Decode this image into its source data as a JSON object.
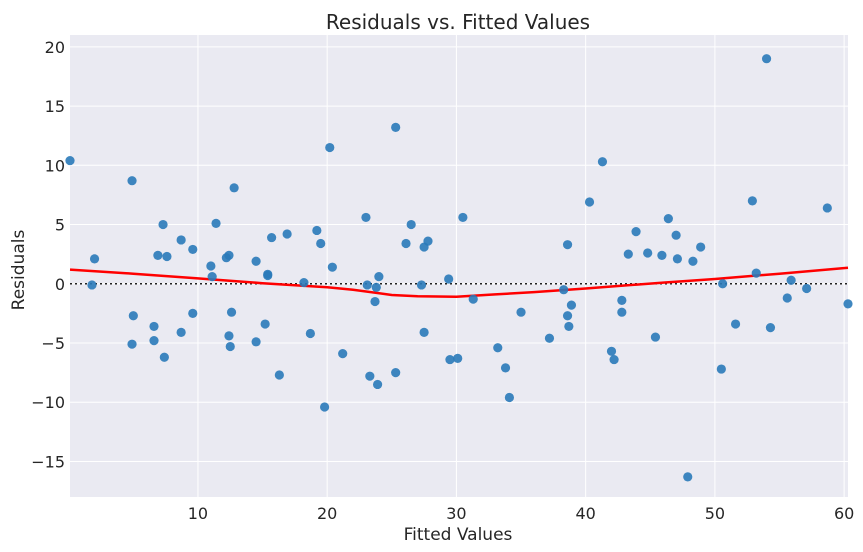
{
  "chart_data": {
    "type": "scatter",
    "title": "Residuals vs. Fitted Values",
    "xlabel": "Fitted Values",
    "ylabel": "Residuals",
    "xlim": [
      0.1,
      60.3
    ],
    "ylim": [
      -18,
      21
    ],
    "xticks": [
      10,
      20,
      30,
      40,
      50,
      60
    ],
    "yticks": [
      -15,
      -10,
      -5,
      0,
      5,
      10,
      15,
      20
    ],
    "grid": true,
    "reference_line": {
      "y": 0,
      "style": "dotted",
      "color": "#222222"
    },
    "colors": {
      "points": "#2a7ab9",
      "smooth": "#ff0000",
      "background": "#eaeaf2"
    },
    "points": [
      [
        0.1,
        10.4
      ],
      [
        1.8,
        -0.1
      ],
      [
        2.0,
        2.1
      ],
      [
        4.9,
        8.7
      ],
      [
        5.0,
        -2.7
      ],
      [
        4.9,
        -5.1
      ],
      [
        6.6,
        -3.6
      ],
      [
        6.6,
        -4.8
      ],
      [
        6.9,
        2.4
      ],
      [
        7.3,
        5.0
      ],
      [
        7.4,
        -6.2
      ],
      [
        7.6,
        2.3
      ],
      [
        8.7,
        3.7
      ],
      [
        8.7,
        -4.1
      ],
      [
        9.6,
        2.9
      ],
      [
        9.6,
        -2.5
      ],
      [
        11.0,
        1.5
      ],
      [
        11.1,
        0.6
      ],
      [
        11.4,
        5.1
      ],
      [
        12.2,
        2.2
      ],
      [
        12.4,
        2.4
      ],
      [
        12.4,
        -4.4
      ],
      [
        12.5,
        -5.3
      ],
      [
        12.6,
        -2.4
      ],
      [
        12.8,
        8.1
      ],
      [
        14.5,
        1.9
      ],
      [
        14.5,
        -4.9
      ],
      [
        15.2,
        -3.4
      ],
      [
        15.4,
        0.8
      ],
      [
        15.4,
        0.7
      ],
      [
        15.7,
        3.9
      ],
      [
        16.3,
        -7.7
      ],
      [
        16.9,
        4.2
      ],
      [
        18.2,
        0.1
      ],
      [
        18.7,
        -4.2
      ],
      [
        19.2,
        4.5
      ],
      [
        19.5,
        3.4
      ],
      [
        19.8,
        -10.4
      ],
      [
        20.2,
        11.5
      ],
      [
        20.4,
        1.4
      ],
      [
        21.2,
        -5.9
      ],
      [
        23.0,
        5.6
      ],
      [
        23.1,
        -0.1
      ],
      [
        23.3,
        -7.8
      ],
      [
        23.7,
        -1.5
      ],
      [
        23.8,
        -0.3
      ],
      [
        24.0,
        0.6
      ],
      [
        23.9,
        -8.5
      ],
      [
        25.3,
        13.2
      ],
      [
        25.3,
        -7.5
      ],
      [
        26.1,
        3.4
      ],
      [
        26.5,
        5.0
      ],
      [
        27.3,
        -0.1
      ],
      [
        27.5,
        3.1
      ],
      [
        27.5,
        -4.1
      ],
      [
        27.8,
        3.6
      ],
      [
        29.4,
        0.4
      ],
      [
        29.5,
        -6.4
      ],
      [
        30.1,
        -6.3
      ],
      [
        30.5,
        5.6
      ],
      [
        31.3,
        -1.3
      ],
      [
        33.2,
        -5.4
      ],
      [
        33.8,
        -7.1
      ],
      [
        34.1,
        -9.6
      ],
      [
        35.0,
        -2.4
      ],
      [
        37.2,
        -4.6
      ],
      [
        38.3,
        -0.5
      ],
      [
        38.6,
        3.3
      ],
      [
        38.6,
        -2.7
      ],
      [
        38.7,
        -3.6
      ],
      [
        38.9,
        -1.8
      ],
      [
        40.3,
        6.9
      ],
      [
        41.3,
        10.3
      ],
      [
        42.0,
        -5.7
      ],
      [
        42.2,
        -6.4
      ],
      [
        42.8,
        -1.4
      ],
      [
        42.8,
        -2.4
      ],
      [
        43.3,
        2.5
      ],
      [
        43.9,
        4.4
      ],
      [
        44.8,
        2.6
      ],
      [
        45.4,
        -4.5
      ],
      [
        45.9,
        2.4
      ],
      [
        46.4,
        5.5
      ],
      [
        47.0,
        4.1
      ],
      [
        47.1,
        2.1
      ],
      [
        47.9,
        -16.3
      ],
      [
        48.3,
        1.9
      ],
      [
        48.9,
        3.1
      ],
      [
        50.5,
        -7.2
      ],
      [
        50.6,
        0.0
      ],
      [
        51.6,
        -3.4
      ],
      [
        52.9,
        7.0
      ],
      [
        53.2,
        0.9
      ],
      [
        54.0,
        19.0
      ],
      [
        54.3,
        -3.7
      ],
      [
        55.6,
        -1.2
      ],
      [
        55.9,
        0.3
      ],
      [
        57.1,
        -0.4
      ],
      [
        58.7,
        6.4
      ],
      [
        60.3,
        -1.7
      ]
    ],
    "smooth_line": [
      [
        0.1,
        1.2
      ],
      [
        5,
        0.85
      ],
      [
        10,
        0.45
      ],
      [
        15,
        0.05
      ],
      [
        20,
        -0.3
      ],
      [
        22,
        -0.5
      ],
      [
        25,
        -0.95
      ],
      [
        27,
        -1.05
      ],
      [
        30,
        -1.1
      ],
      [
        33,
        -0.9
      ],
      [
        36,
        -0.7
      ],
      [
        40,
        -0.4
      ],
      [
        43,
        -0.15
      ],
      [
        46,
        0.1
      ],
      [
        50,
        0.4
      ],
      [
        55,
        0.85
      ],
      [
        60.3,
        1.35
      ]
    ]
  }
}
